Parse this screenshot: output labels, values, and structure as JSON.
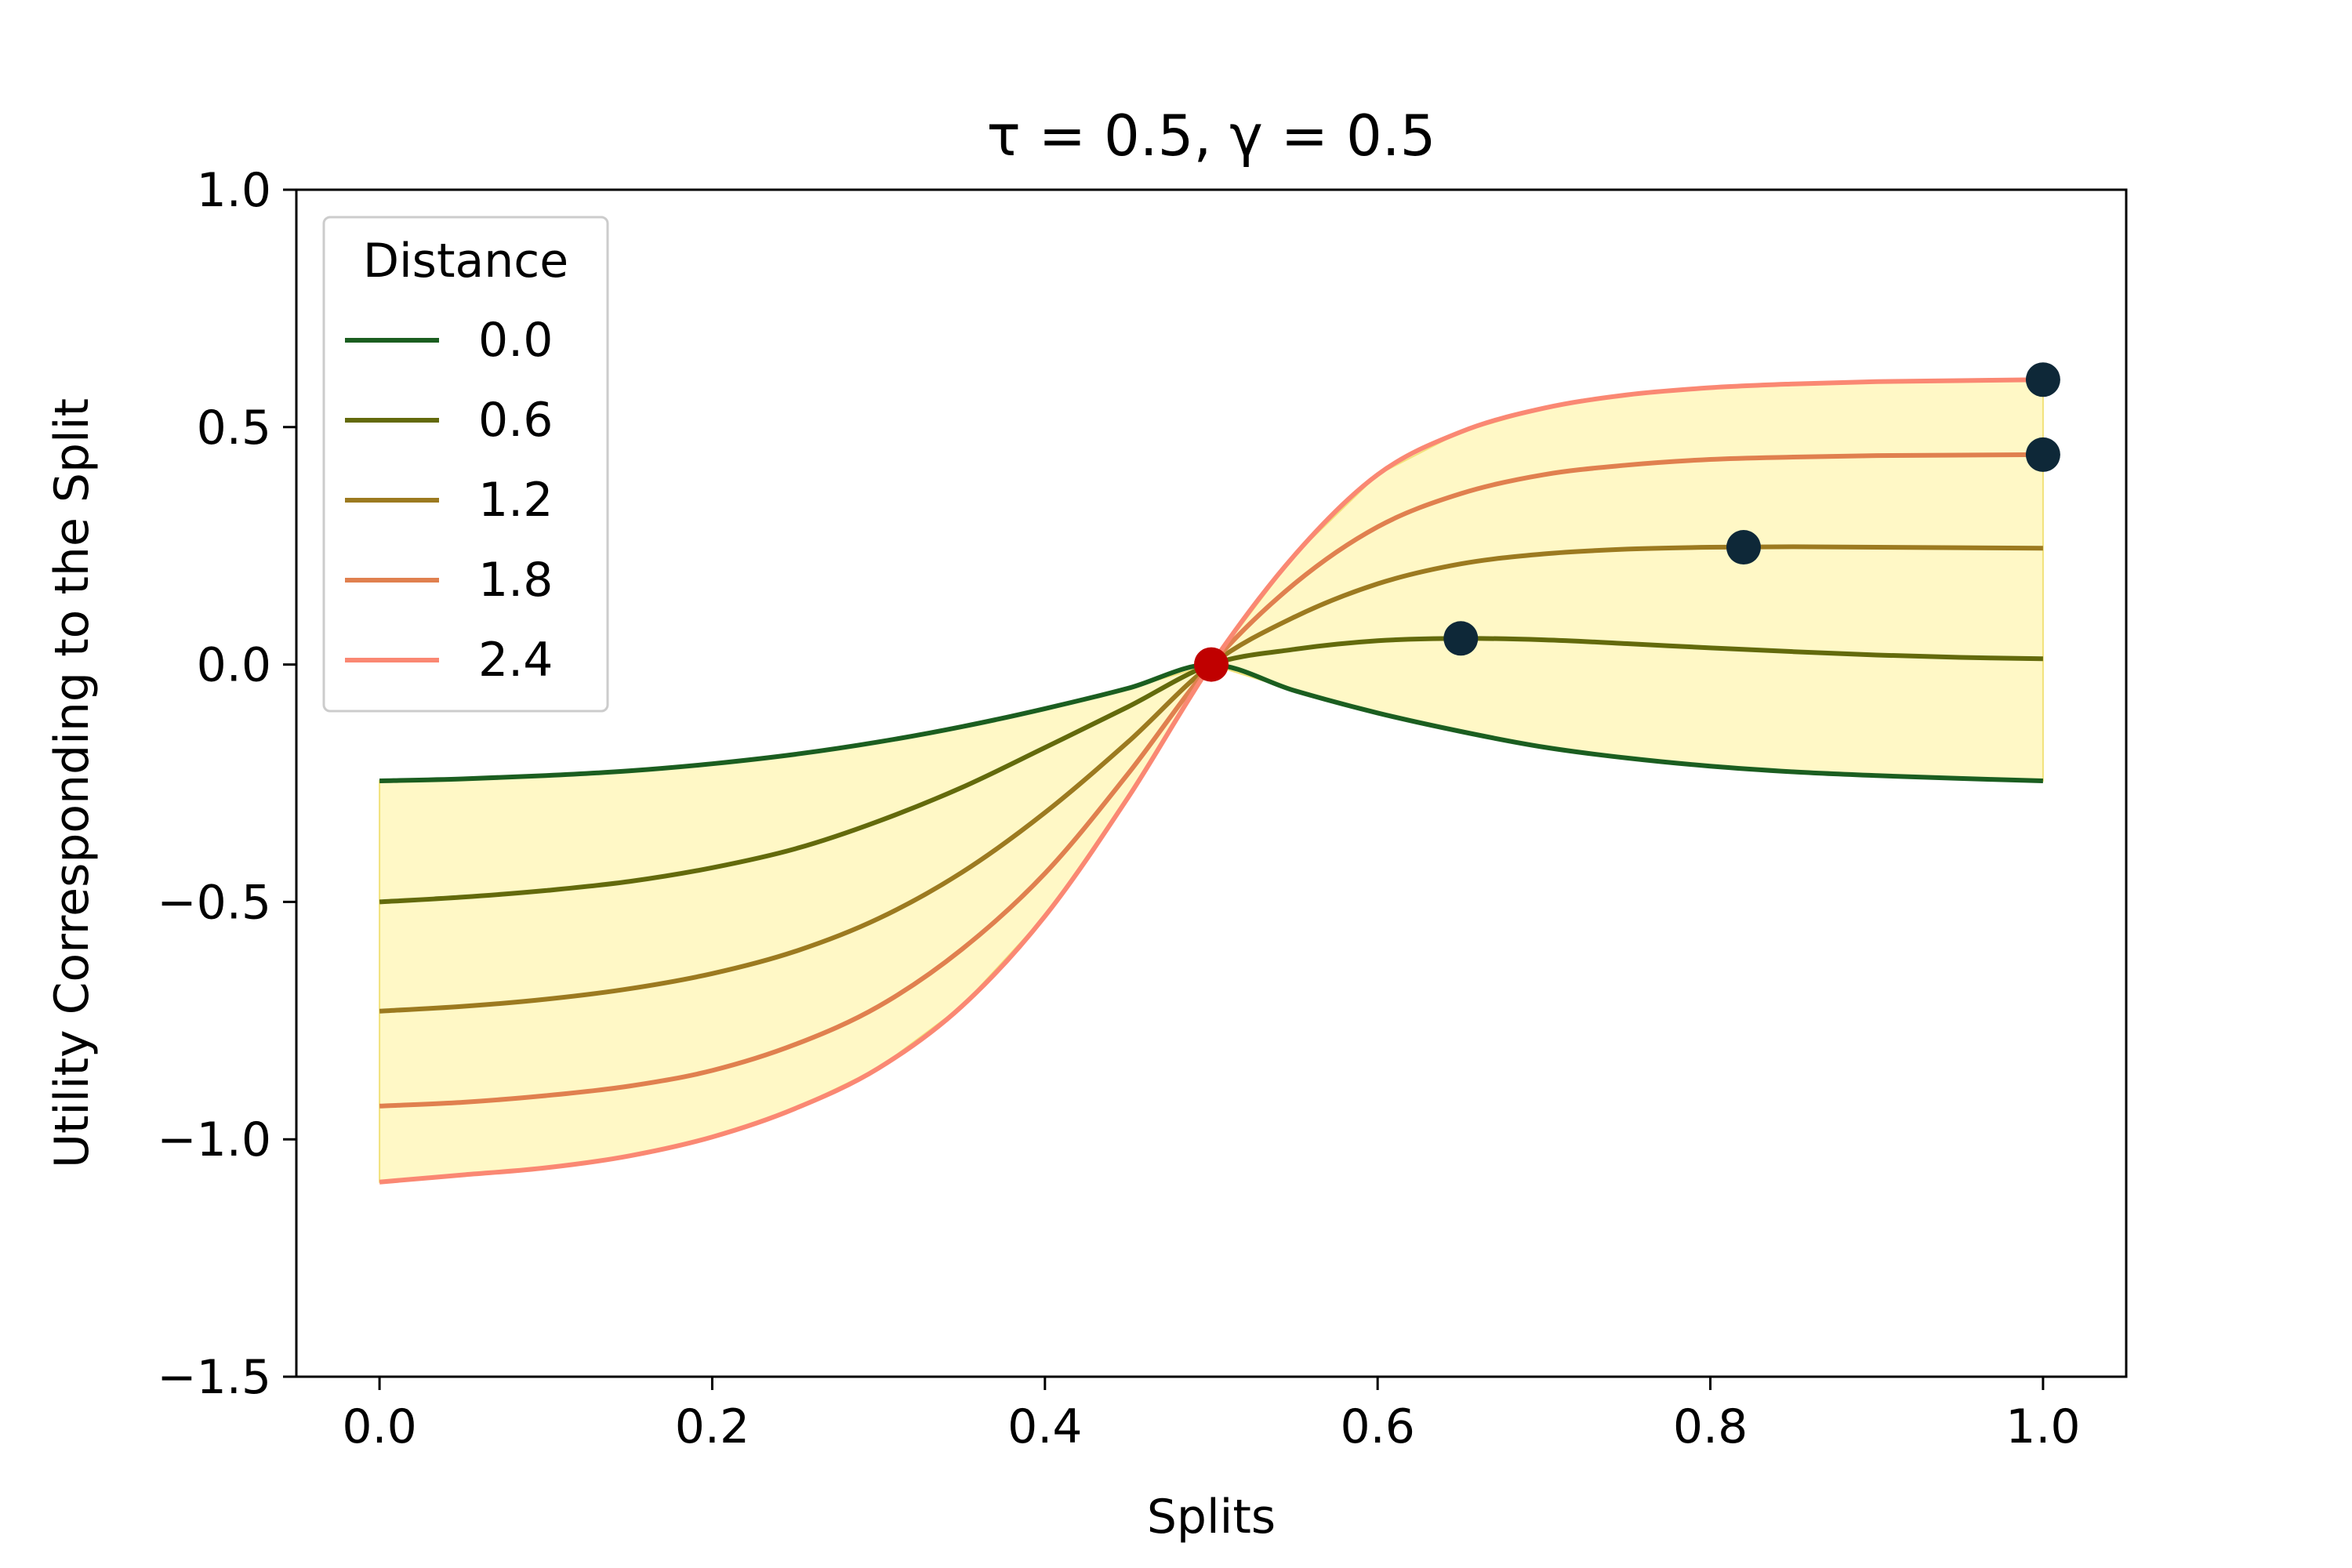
{
  "chart_data": {
    "type": "line",
    "title": "τ = 0.5, γ = 0.5",
    "xlabel": "Splits",
    "ylabel": "Utility Corresponding to the Split",
    "xlim": [
      -0.05,
      1.05
    ],
    "ylim": [
      -1.5,
      1.0
    ],
    "xticks": [
      {
        "value": 0.0,
        "label": "0.0"
      },
      {
        "value": 0.2,
        "label": "0.2"
      },
      {
        "value": 0.4,
        "label": "0.4"
      },
      {
        "value": 0.6,
        "label": "0.6"
      },
      {
        "value": 0.8,
        "label": "0.8"
      },
      {
        "value": 1.0,
        "label": "1.0"
      }
    ],
    "yticks": [
      {
        "value": 1.0,
        "label": "1.0"
      },
      {
        "value": 0.5,
        "label": "0.5"
      },
      {
        "value": 0.0,
        "label": "0.0"
      },
      {
        "value": -0.5,
        "label": "−0.5"
      },
      {
        "value": -1.0,
        "label": "−1.0"
      },
      {
        "value": -1.5,
        "label": "−1.5"
      }
    ],
    "legend": {
      "title": "Distance",
      "position": "top-left"
    },
    "fill_color": "#fff8c6",
    "fill_edge_color": "#f2e27a",
    "x": [
      0.0,
      0.05,
      0.1,
      0.15,
      0.2,
      0.25,
      0.3,
      0.35,
      0.4,
      0.45,
      0.5,
      0.55,
      0.6,
      0.65,
      0.7,
      0.75,
      0.8,
      0.85,
      0.9,
      0.95,
      1.0
    ],
    "series": [
      {
        "name": "0.0",
        "color": "#1b5e20",
        "values": [
          -0.245,
          -0.241,
          -0.234,
          -0.224,
          -0.209,
          -0.189,
          -0.163,
          -0.131,
          -0.093,
          -0.05,
          0.0,
          -0.055,
          -0.102,
          -0.141,
          -0.174,
          -0.197,
          -0.214,
          -0.226,
          -0.234,
          -0.24,
          -0.245
        ]
      },
      {
        "name": "0.6",
        "color": "#636a0c",
        "values": [
          -0.5,
          -0.49,
          -0.476,
          -0.457,
          -0.428,
          -0.388,
          -0.33,
          -0.259,
          -0.175,
          -0.089,
          0.0,
          0.032,
          0.05,
          0.055,
          0.052,
          0.044,
          0.035,
          0.027,
          0.02,
          0.015,
          0.012
        ]
      },
      {
        "name": "1.2",
        "color": "#9c7a20",
        "values": [
          -0.73,
          -0.72,
          -0.705,
          -0.683,
          -0.651,
          -0.604,
          -0.535,
          -0.438,
          -0.312,
          -0.163,
          0.0,
          0.1,
          0.17,
          0.212,
          0.233,
          0.243,
          0.247,
          0.248,
          0.247,
          0.246,
          0.245
        ]
      },
      {
        "name": "1.8",
        "color": "#e0804f",
        "values": [
          -0.93,
          -0.922,
          -0.908,
          -0.888,
          -0.855,
          -0.8,
          -0.72,
          -0.6,
          -0.44,
          -0.23,
          0.0,
          0.17,
          0.29,
          0.36,
          0.4,
          0.42,
          0.432,
          0.437,
          0.44,
          0.441,
          0.442
        ]
      },
      {
        "name": "2.4",
        "color": "#fa8873",
        "values": [
          -1.09,
          -1.075,
          -1.06,
          -1.035,
          -0.995,
          -0.935,
          -0.85,
          -0.72,
          -0.53,
          -0.28,
          0.0,
          0.23,
          0.4,
          0.49,
          0.54,
          0.568,
          0.583,
          0.591,
          0.596,
          0.598,
          0.6
        ]
      }
    ],
    "markers": [
      {
        "name": "center-point",
        "x": 0.5,
        "y": 0.0,
        "color": "#c00000"
      },
      {
        "name": "peak-0.6",
        "x": 0.65,
        "y": 0.055,
        "color": "#0e2838"
      },
      {
        "name": "peak-1.2",
        "x": 0.82,
        "y": 0.247,
        "color": "#0e2838"
      },
      {
        "name": "peak-1.8",
        "x": 1.0,
        "y": 0.442,
        "color": "#0e2838"
      },
      {
        "name": "peak-2.4",
        "x": 1.0,
        "y": 0.6,
        "color": "#0e2838"
      }
    ]
  }
}
